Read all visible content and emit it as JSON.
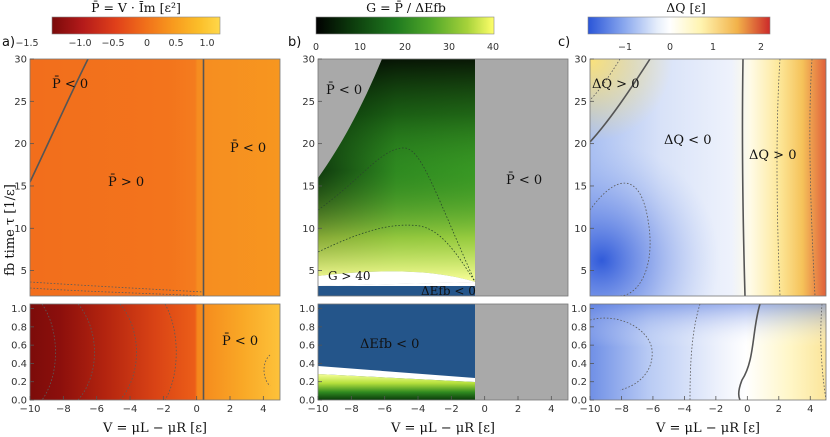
{
  "figure": {
    "ylabel": "fb time τ [1/ε]",
    "xlabel": "V = μL − μR  [ε]"
  },
  "panels": [
    {
      "letter": "a)",
      "title": "P̄ = V · Īm  [ε²]",
      "colorbar": {
        "ticks": [
          "−1.5",
          "−1.0",
          "−0.5",
          "0",
          "0.5",
          "1.0"
        ],
        "stops": [
          "#7a0a0a",
          "#b31a1a",
          "#e0401a",
          "#f06e1a",
          "#f89a1e",
          "#fbbf2a",
          "#ffd84a"
        ]
      },
      "regions": [
        "P̄ < 0",
        "P̄ < 0",
        "P̄ > 0",
        "P̄ < 0"
      ]
    },
    {
      "letter": "b)",
      "title": "G = P̄ / ΔEfb",
      "colorbar": {
        "ticks": [
          "0",
          "10",
          "20",
          "30",
          "40"
        ],
        "stops": [
          "#000000",
          "#0c3a0c",
          "#1f7a1f",
          "#52a82a",
          "#a6d23a",
          "#ffff6a"
        ]
      },
      "regions": [
        "P̄ < 0",
        "P̄ < 0",
        "G > 40",
        "ΔEfb < 0",
        "ΔEfb < 0"
      ]
    },
    {
      "letter": "c)",
      "title": "ΔQ [ε]",
      "colorbar": {
        "ticks": [
          "−1",
          "0",
          "1",
          "2"
        ],
        "stops": [
          "#2a55d8",
          "#8aa8ee",
          "#e6eefb",
          "#ffffff",
          "#fff4b0",
          "#f2b24a",
          "#cc2a2a"
        ]
      },
      "regions": [
        "ΔQ > 0",
        "ΔQ < 0",
        "ΔQ > 0"
      ]
    }
  ],
  "chart_data": {
    "type": "heatmap",
    "x": {
      "label": "V = μL − μR  [ε]",
      "range": [
        -10,
        5
      ],
      "ticks": [
        "−10",
        "−8",
        "−6",
        "−4",
        "−2",
        "0",
        "2",
        "4"
      ]
    },
    "y": {
      "label": "fb time τ [1/ε]",
      "upper": {
        "range": [
          2,
          30
        ],
        "ticks": [
          "5",
          "10",
          "15",
          "20",
          "25",
          "30"
        ]
      },
      "lower": {
        "range": [
          0,
          1.05
        ],
        "ticks": [
          "0.0",
          "0.2",
          "0.4",
          "0.6",
          "0.8",
          "1.0"
        ]
      }
    },
    "panels": [
      {
        "letter": "a)",
        "quantity": "P̄ = V · Īm",
        "unit": "ε²",
        "colorbar_range": [
          -1.7,
          1.2
        ]
      },
      {
        "letter": "b)",
        "quantity": "G = P̄ / ΔEfb",
        "colorbar_range": [
          0,
          40
        ]
      },
      {
        "letter": "c)",
        "quantity": "ΔQ",
        "unit": "ε",
        "colorbar_range": [
          -1.6,
          2.2
        ]
      }
    ]
  }
}
